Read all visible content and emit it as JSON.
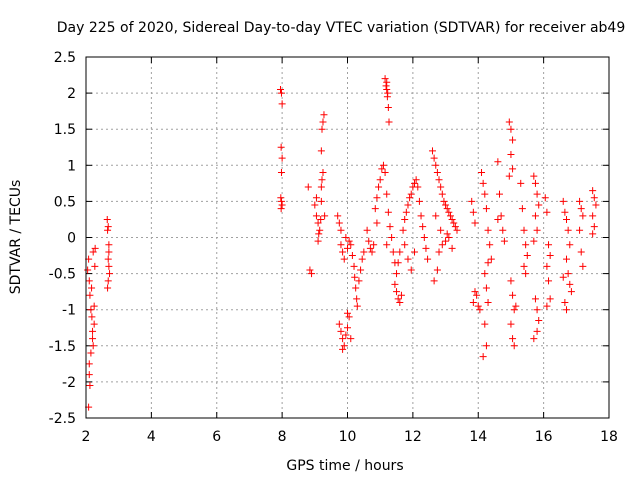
{
  "chart_data": {
    "type": "scatter",
    "title": "Day 225 of 2020, Sidereal Day-to-day VTEC variation (SDTVAR) for receiver ab49",
    "xlabel": "GPS time / hours",
    "ylabel": "SDTVAR / TECUs",
    "xlim": [
      2,
      18
    ],
    "ylim": [
      -2.5,
      2.5
    ],
    "xticks": [
      2,
      4,
      6,
      8,
      10,
      12,
      14,
      16,
      18
    ],
    "yticks": [
      -2.5,
      -2,
      -1.5,
      -1,
      -0.5,
      0,
      0.5,
      1,
      1.5,
      2,
      2.5
    ],
    "xtick_labels": [
      "2",
      "4",
      "6",
      "8",
      "10",
      "12",
      "14",
      "16",
      "18"
    ],
    "ytick_labels": [
      "-2.5",
      "-2",
      "-1.5",
      "-1",
      "-0.5",
      "0",
      "0.5",
      "1",
      "1.5",
      "2",
      "2.5"
    ],
    "grid": true,
    "marker": "+",
    "color": "#ff0000",
    "series": [
      {
        "name": "SDTVAR",
        "points": [
          [
            2.05,
            -0.45
          ],
          [
            2.08,
            -0.3
          ],
          [
            2.1,
            -0.6
          ],
          [
            2.12,
            -0.8
          ],
          [
            2.15,
            -1.0
          ],
          [
            2.18,
            -1.1
          ],
          [
            2.2,
            -1.3
          ],
          [
            2.22,
            -1.5
          ],
          [
            2.1,
            -1.9
          ],
          [
            2.12,
            -2.05
          ],
          [
            2.08,
            -2.35
          ],
          [
            2.15,
            -1.6
          ],
          [
            2.2,
            -1.4
          ],
          [
            2.25,
            -0.95
          ],
          [
            2.27,
            -0.4
          ],
          [
            2.22,
            -0.2
          ],
          [
            2.28,
            -0.15
          ],
          [
            2.17,
            -0.7
          ],
          [
            2.1,
            -1.75
          ],
          [
            2.25,
            -1.2
          ],
          [
            2.65,
            0.25
          ],
          [
            2.68,
            0.15
          ],
          [
            2.66,
            0.1
          ],
          [
            2.7,
            -0.1
          ],
          [
            2.68,
            -0.3
          ],
          [
            2.7,
            -0.4
          ],
          [
            2.72,
            -0.5
          ],
          [
            2.68,
            -0.6
          ],
          [
            2.66,
            -0.7
          ],
          [
            2.7,
            -0.2
          ],
          [
            7.95,
            2.05
          ],
          [
            7.98,
            2.0
          ],
          [
            8.0,
            1.85
          ],
          [
            7.97,
            1.25
          ],
          [
            8.0,
            1.1
          ],
          [
            7.98,
            0.9
          ],
          [
            7.96,
            0.55
          ],
          [
            7.98,
            0.5
          ],
          [
            8.0,
            0.45
          ],
          [
            7.97,
            0.4
          ],
          [
            8.8,
            0.7
          ],
          [
            8.85,
            -0.45
          ],
          [
            8.9,
            -0.5
          ],
          [
            9.0,
            0.45
          ],
          [
            9.05,
            0.3
          ],
          [
            9.1,
            0.2
          ],
          [
            9.12,
            0.05
          ],
          [
            9.15,
            0.1
          ],
          [
            9.18,
            0.25
          ],
          [
            9.2,
            0.7
          ],
          [
            9.22,
            0.8
          ],
          [
            9.25,
            0.9
          ],
          [
            9.2,
            1.2
          ],
          [
            9.22,
            1.5
          ],
          [
            9.25,
            1.6
          ],
          [
            9.28,
            1.7
          ],
          [
            9.2,
            0.5
          ],
          [
            9.1,
            -0.05
          ],
          [
            9.3,
            0.3
          ],
          [
            9.05,
            0.55
          ],
          [
            9.7,
            0.3
          ],
          [
            9.75,
            0.2
          ],
          [
            9.8,
            0.1
          ],
          [
            9.8,
            -0.1
          ],
          [
            9.85,
            -0.2
          ],
          [
            9.9,
            -0.3
          ],
          [
            9.95,
            0.0
          ],
          [
            10.0,
            -0.15
          ],
          [
            10.05,
            -0.05
          ],
          [
            10.1,
            -0.1
          ],
          [
            10.15,
            -0.25
          ],
          [
            10.2,
            -0.4
          ],
          [
            10.22,
            -0.55
          ],
          [
            10.25,
            -0.7
          ],
          [
            10.28,
            -0.85
          ],
          [
            10.3,
            -0.95
          ],
          [
            10.35,
            -0.6
          ],
          [
            10.4,
            -0.45
          ],
          [
            10.45,
            -0.3
          ],
          [
            10.5,
            -0.2
          ],
          [
            9.75,
            -1.2
          ],
          [
            9.8,
            -1.3
          ],
          [
            9.85,
            -1.4
          ],
          [
            9.9,
            -1.5
          ],
          [
            9.95,
            -1.35
          ],
          [
            10.0,
            -1.25
          ],
          [
            10.05,
            -1.1
          ],
          [
            10.1,
            -1.4
          ],
          [
            9.85,
            -1.55
          ],
          [
            10.0,
            -1.05
          ],
          [
            10.6,
            0.1
          ],
          [
            10.65,
            -0.05
          ],
          [
            10.7,
            -0.15
          ],
          [
            10.75,
            -0.2
          ],
          [
            10.8,
            -0.1
          ],
          [
            10.85,
            0.4
          ],
          [
            10.9,
            0.55
          ],
          [
            10.95,
            0.7
          ],
          [
            11.0,
            0.8
          ],
          [
            11.05,
            0.95
          ],
          [
            11.1,
            1.0
          ],
          [
            11.15,
            0.9
          ],
          [
            11.2,
            0.6
          ],
          [
            11.25,
            0.35
          ],
          [
            11.3,
            0.15
          ],
          [
            11.35,
            0.0
          ],
          [
            11.4,
            -0.2
          ],
          [
            11.45,
            -0.35
          ],
          [
            10.9,
            0.2
          ],
          [
            11.2,
            -0.1
          ],
          [
            11.15,
            2.2
          ],
          [
            11.18,
            2.1
          ],
          [
            11.2,
            2.05
          ],
          [
            11.22,
            1.95
          ],
          [
            11.25,
            1.8
          ],
          [
            11.27,
            1.6
          ],
          [
            11.2,
            2.15
          ],
          [
            11.23,
            2.0
          ],
          [
            11.45,
            -0.65
          ],
          [
            11.5,
            -0.75
          ],
          [
            11.55,
            -0.85
          ],
          [
            11.6,
            -0.9
          ],
          [
            11.65,
            -0.8
          ],
          [
            11.5,
            -0.5
          ],
          [
            11.55,
            -0.35
          ],
          [
            11.6,
            -0.2
          ],
          [
            11.7,
            0.1
          ],
          [
            11.75,
            0.25
          ],
          [
            11.8,
            0.35
          ],
          [
            11.85,
            0.45
          ],
          [
            11.9,
            0.55
          ],
          [
            11.95,
            0.6
          ],
          [
            12.0,
            0.7
          ],
          [
            12.05,
            0.75
          ],
          [
            12.1,
            0.8
          ],
          [
            12.15,
            0.7
          ],
          [
            12.2,
            0.5
          ],
          [
            12.25,
            0.3
          ],
          [
            12.3,
            0.15
          ],
          [
            12.35,
            0.0
          ],
          [
            12.4,
            -0.15
          ],
          [
            12.45,
            -0.3
          ],
          [
            11.75,
            -0.1
          ],
          [
            11.85,
            -0.3
          ],
          [
            11.95,
            -0.45
          ],
          [
            12.05,
            -0.2
          ],
          [
            12.6,
            1.2
          ],
          [
            12.65,
            1.1
          ],
          [
            12.7,
            1.0
          ],
          [
            12.75,
            0.9
          ],
          [
            12.8,
            0.8
          ],
          [
            12.85,
            0.7
          ],
          [
            12.9,
            0.6
          ],
          [
            12.95,
            0.5
          ],
          [
            13.0,
            0.45
          ],
          [
            13.05,
            0.4
          ],
          [
            13.1,
            0.35
          ],
          [
            13.15,
            0.3
          ],
          [
            13.2,
            0.25
          ],
          [
            13.25,
            0.2
          ],
          [
            13.3,
            0.15
          ],
          [
            13.35,
            0.1
          ],
          [
            12.7,
            0.3
          ],
          [
            12.8,
            -0.2
          ],
          [
            12.75,
            -0.45
          ],
          [
            12.65,
            -0.6
          ],
          [
            12.9,
            -0.1
          ],
          [
            13.0,
            -0.05
          ],
          [
            13.1,
            0.0
          ],
          [
            13.2,
            -0.15
          ],
          [
            13.05,
            0.05
          ],
          [
            12.85,
            0.1
          ],
          [
            13.8,
            0.5
          ],
          [
            13.85,
            0.35
          ],
          [
            13.9,
            0.2
          ],
          [
            13.95,
            -0.8
          ],
          [
            14.0,
            -0.95
          ],
          [
            14.05,
            -1.0
          ],
          [
            13.85,
            -0.9
          ],
          [
            13.9,
            -0.75
          ],
          [
            14.1,
            0.9
          ],
          [
            14.15,
            0.75
          ],
          [
            14.2,
            0.6
          ],
          [
            14.25,
            0.4
          ],
          [
            14.3,
            0.1
          ],
          [
            14.35,
            -0.1
          ],
          [
            14.4,
            -0.3
          ],
          [
            14.2,
            -0.5
          ],
          [
            14.25,
            -0.7
          ],
          [
            14.3,
            -0.9
          ],
          [
            14.2,
            -1.2
          ],
          [
            14.25,
            -1.5
          ],
          [
            14.15,
            -1.65
          ],
          [
            14.3,
            -0.35
          ],
          [
            14.6,
            1.05
          ],
          [
            14.65,
            0.6
          ],
          [
            14.7,
            0.3
          ],
          [
            14.75,
            0.1
          ],
          [
            14.8,
            -0.05
          ],
          [
            14.6,
            0.25
          ],
          [
            14.95,
            1.6
          ],
          [
            15.0,
            1.5
          ],
          [
            15.05,
            1.35
          ],
          [
            15.0,
            1.15
          ],
          [
            15.05,
            0.95
          ],
          [
            14.95,
            0.85
          ],
          [
            15.0,
            -0.6
          ],
          [
            15.05,
            -0.8
          ],
          [
            15.1,
            -1.0
          ],
          [
            15.0,
            -1.2
          ],
          [
            15.05,
            -1.4
          ],
          [
            15.1,
            -1.5
          ],
          [
            15.15,
            -0.95
          ],
          [
            15.3,
            0.75
          ],
          [
            15.35,
            0.4
          ],
          [
            15.4,
            0.1
          ],
          [
            15.45,
            -0.1
          ],
          [
            15.5,
            -0.25
          ],
          [
            15.4,
            -0.4
          ],
          [
            15.45,
            -0.5
          ],
          [
            15.7,
            0.85
          ],
          [
            15.75,
            0.75
          ],
          [
            15.8,
            0.6
          ],
          [
            15.85,
            0.45
          ],
          [
            15.75,
            0.3
          ],
          [
            15.8,
            0.1
          ],
          [
            15.7,
            -0.05
          ],
          [
            15.75,
            -0.85
          ],
          [
            15.8,
            -1.0
          ],
          [
            15.85,
            -1.15
          ],
          [
            15.7,
            -1.4
          ],
          [
            15.8,
            -1.3
          ],
          [
            16.05,
            0.55
          ],
          [
            16.1,
            0.35
          ],
          [
            16.15,
            -0.1
          ],
          [
            16.2,
            -0.25
          ],
          [
            16.1,
            -0.4
          ],
          [
            16.15,
            -0.6
          ],
          [
            16.2,
            -0.85
          ],
          [
            16.1,
            -0.95
          ],
          [
            16.6,
            0.5
          ],
          [
            16.65,
            0.35
          ],
          [
            16.7,
            0.25
          ],
          [
            16.75,
            0.1
          ],
          [
            16.8,
            -0.1
          ],
          [
            16.7,
            -0.3
          ],
          [
            16.75,
            -0.5
          ],
          [
            16.8,
            -0.65
          ],
          [
            16.85,
            -0.75
          ],
          [
            16.65,
            -0.9
          ],
          [
            16.7,
            -1.0
          ],
          [
            16.6,
            -0.55
          ],
          [
            17.1,
            0.5
          ],
          [
            17.15,
            0.4
          ],
          [
            17.2,
            0.3
          ],
          [
            17.1,
            0.1
          ],
          [
            17.15,
            -0.2
          ],
          [
            17.2,
            -0.4
          ],
          [
            17.5,
            0.65
          ],
          [
            17.55,
            0.55
          ],
          [
            17.6,
            0.45
          ],
          [
            17.5,
            0.3
          ],
          [
            17.55,
            0.15
          ],
          [
            17.5,
            0.05
          ]
        ]
      }
    ]
  }
}
